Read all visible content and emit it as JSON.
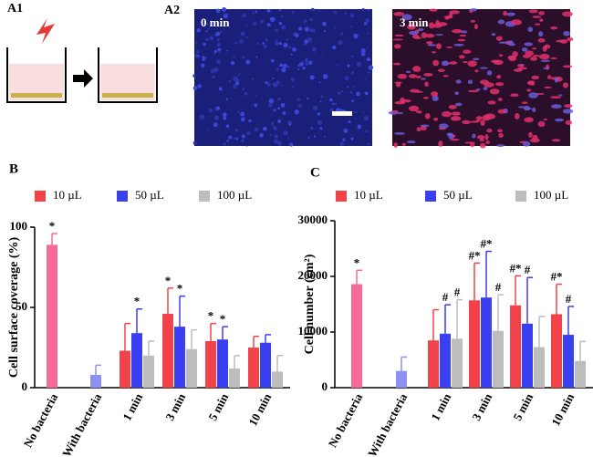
{
  "panels": {
    "a1": "A1",
    "a2": "A2",
    "image_labels": [
      "0 min",
      "3 min"
    ]
  },
  "chart_data": [
    {
      "type": "bar",
      "panel": "B",
      "ylabel": "Cell surface coverage (%)",
      "ylim": [
        0,
        100
      ],
      "yticks": [
        0,
        50,
        100
      ],
      "categories": [
        "No bacteria",
        "With bacteria",
        "1 min",
        "3 min",
        "5 min",
        "10 min"
      ],
      "controls": {
        "values": [
          89,
          8
        ],
        "errors": [
          7,
          6
        ],
        "colors": [
          "#f56a97",
          "#8d8ff2"
        ],
        "annotations": [
          "*",
          null
        ]
      },
      "series": [
        {
          "name": "10 µL",
          "color": "#f2434b",
          "values": [
            null,
            null,
            23,
            46,
            29,
            25
          ],
          "errors": [
            null,
            null,
            17,
            16,
            11,
            7
          ],
          "annotations": [
            null,
            null,
            null,
            "*",
            "*",
            null
          ]
        },
        {
          "name": "50 µL",
          "color": "#3a3ff0",
          "values": [
            null,
            null,
            34,
            38,
            30,
            28
          ],
          "errors": [
            null,
            null,
            15,
            19,
            8,
            5
          ],
          "annotations": [
            null,
            null,
            "*",
            "*",
            "*",
            null
          ]
        },
        {
          "name": "100 µL",
          "color": "#bdbdbd",
          "values": [
            null,
            null,
            20,
            24,
            12,
            10
          ],
          "errors": [
            null,
            null,
            9,
            12,
            8,
            10
          ],
          "annotations": [
            null,
            null,
            null,
            null,
            null,
            null
          ]
        }
      ]
    },
    {
      "type": "bar",
      "panel": "C",
      "ylabel": "Cell number (cm²)",
      "ylim": [
        0,
        30000
      ],
      "yticks": [
        0,
        10000,
        20000,
        30000
      ],
      "categories": [
        "No bacteria",
        "With bacteria",
        "1 min",
        "3 min",
        "5 min",
        "10 min"
      ],
      "controls": {
        "values": [
          18600,
          3000
        ],
        "errors": [
          2500,
          2500
        ],
        "colors": [
          "#f56a97",
          "#8d8ff2"
        ],
        "annotations": [
          "*",
          null
        ]
      },
      "series": [
        {
          "name": "10 µL",
          "color": "#f2434b",
          "values": [
            null,
            null,
            8500,
            15700,
            14800,
            13200
          ],
          "errors": [
            null,
            null,
            5500,
            6700,
            5300,
            5400
          ],
          "annotations": [
            null,
            null,
            null,
            "#*",
            "#*",
            "#*"
          ]
        },
        {
          "name": "50 µL",
          "color": "#3a3ff0",
          "values": [
            null,
            null,
            9700,
            16200,
            11500,
            9500
          ],
          "errors": [
            null,
            null,
            5200,
            8300,
            8300,
            5100
          ],
          "annotations": [
            null,
            null,
            "#",
            "#*",
            "#",
            "#"
          ]
        },
        {
          "name": "100 µL",
          "color": "#bdbdbd",
          "values": [
            null,
            null,
            8800,
            10200,
            7300,
            4800
          ],
          "errors": [
            null,
            null,
            7000,
            6500,
            5500,
            3500
          ],
          "annotations": [
            null,
            null,
            "#",
            "#",
            null,
            null
          ]
        }
      ]
    }
  ]
}
